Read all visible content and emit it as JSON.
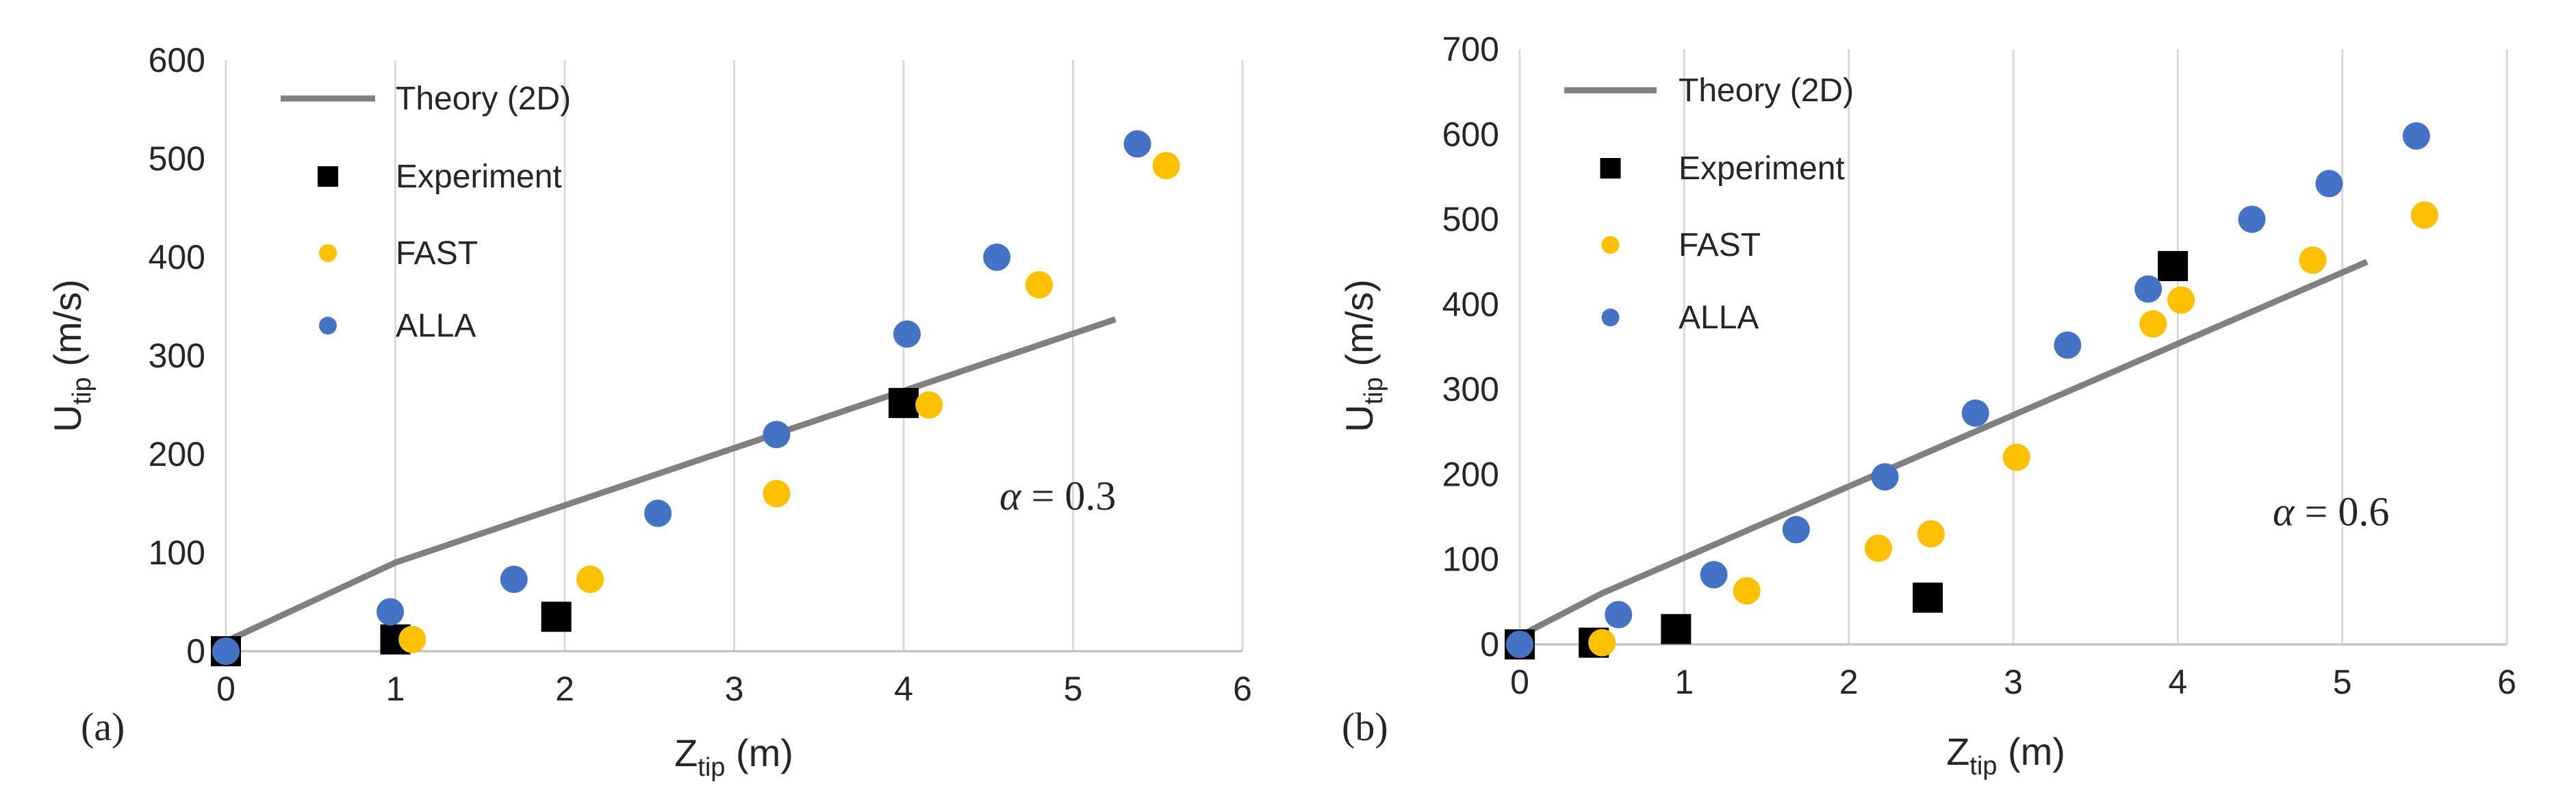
{
  "chart_data": [
    {
      "type": "scatter",
      "panel_label": "(a)",
      "annotation": "α = 0.3",
      "annotation_symbol": "α",
      "annotation_value": " = 0.3",
      "xlabel": "Z",
      "xlabel_sub": "tip",
      "xlabel_unit": " (m)",
      "ylabel": "U",
      "ylabel_sub": "tip",
      "ylabel_unit": " (m/s)",
      "xlim": [
        0,
        6
      ],
      "ylim": [
        0,
        600
      ],
      "xticks": [
        0,
        1,
        2,
        3,
        4,
        5,
        6
      ],
      "yticks": [
        0,
        100,
        200,
        300,
        400,
        500,
        600
      ],
      "grid": "vertical",
      "legend_position": "top-left",
      "series": [
        {
          "name": "Theory (2D)",
          "kind": "line",
          "color": "#808080",
          "x": [
            0,
            1,
            5.25
          ],
          "y": [
            10,
            90,
            337
          ]
        },
        {
          "name": "Experiment",
          "kind": "square",
          "color": "#000000",
          "x": [
            0,
            1,
            1.95,
            4
          ],
          "y": [
            0,
            12,
            35,
            252
          ]
        },
        {
          "name": "FAST",
          "kind": "circle",
          "color": "#FFC000",
          "x": [
            0,
            1.1,
            2.15,
            3.25,
            4.15,
            4.8,
            5.55
          ],
          "y": [
            0,
            12,
            73,
            160,
            250,
            372,
            493
          ]
        },
        {
          "name": "ALLA",
          "kind": "circle",
          "color": "#4472C4",
          "x": [
            0,
            0.97,
            1.7,
            2.55,
            3.25,
            4.02,
            4.55,
            5.38
          ],
          "y": [
            0,
            40,
            73,
            140,
            220,
            322,
            400,
            515
          ]
        }
      ]
    },
    {
      "type": "scatter",
      "panel_label": "(b)",
      "annotation": "α = 0.6",
      "annotation_symbol": "α",
      "annotation_value": " = 0.6",
      "xlabel": "Z",
      "xlabel_sub": "tip",
      "xlabel_unit": " (m)",
      "ylabel": "U",
      "ylabel_sub": "tip",
      "ylabel_unit": " (m/s)",
      "xlim": [
        0,
        6
      ],
      "ylim": [
        0,
        700
      ],
      "xticks": [
        0,
        1,
        2,
        3,
        4,
        5,
        6
      ],
      "yticks": [
        0,
        100,
        200,
        300,
        400,
        500,
        600,
        700
      ],
      "grid": "vertical",
      "legend_position": "top-left",
      "series": [
        {
          "name": "Theory (2D)",
          "kind": "line",
          "color": "#808080",
          "x": [
            0,
            0.5,
            5.15
          ],
          "y": [
            10,
            60,
            450
          ]
        },
        {
          "name": "Experiment",
          "kind": "square",
          "color": "#000000",
          "x": [
            0,
            0.45,
            0.95,
            2.48,
            3.97
          ],
          "y": [
            0,
            2,
            18,
            55,
            445
          ]
        },
        {
          "name": "FAST",
          "kind": "circle",
          "color": "#FFC000",
          "x": [
            0,
            0.5,
            1.38,
            2.18,
            2.5,
            3.02,
            3.85,
            4.02,
            4.82,
            5.5
          ],
          "y": [
            0,
            2,
            63,
            113,
            130,
            220,
            377,
            405,
            452,
            505
          ]
        },
        {
          "name": "ALLA",
          "kind": "circle",
          "color": "#4472C4",
          "x": [
            0,
            0.6,
            1.18,
            1.68,
            2.22,
            2.77,
            3.33,
            3.82,
            4.45,
            4.92,
            5.45
          ],
          "y": [
            0,
            35,
            82,
            135,
            197,
            272,
            352,
            418,
            500,
            542,
            598
          ]
        }
      ]
    }
  ]
}
